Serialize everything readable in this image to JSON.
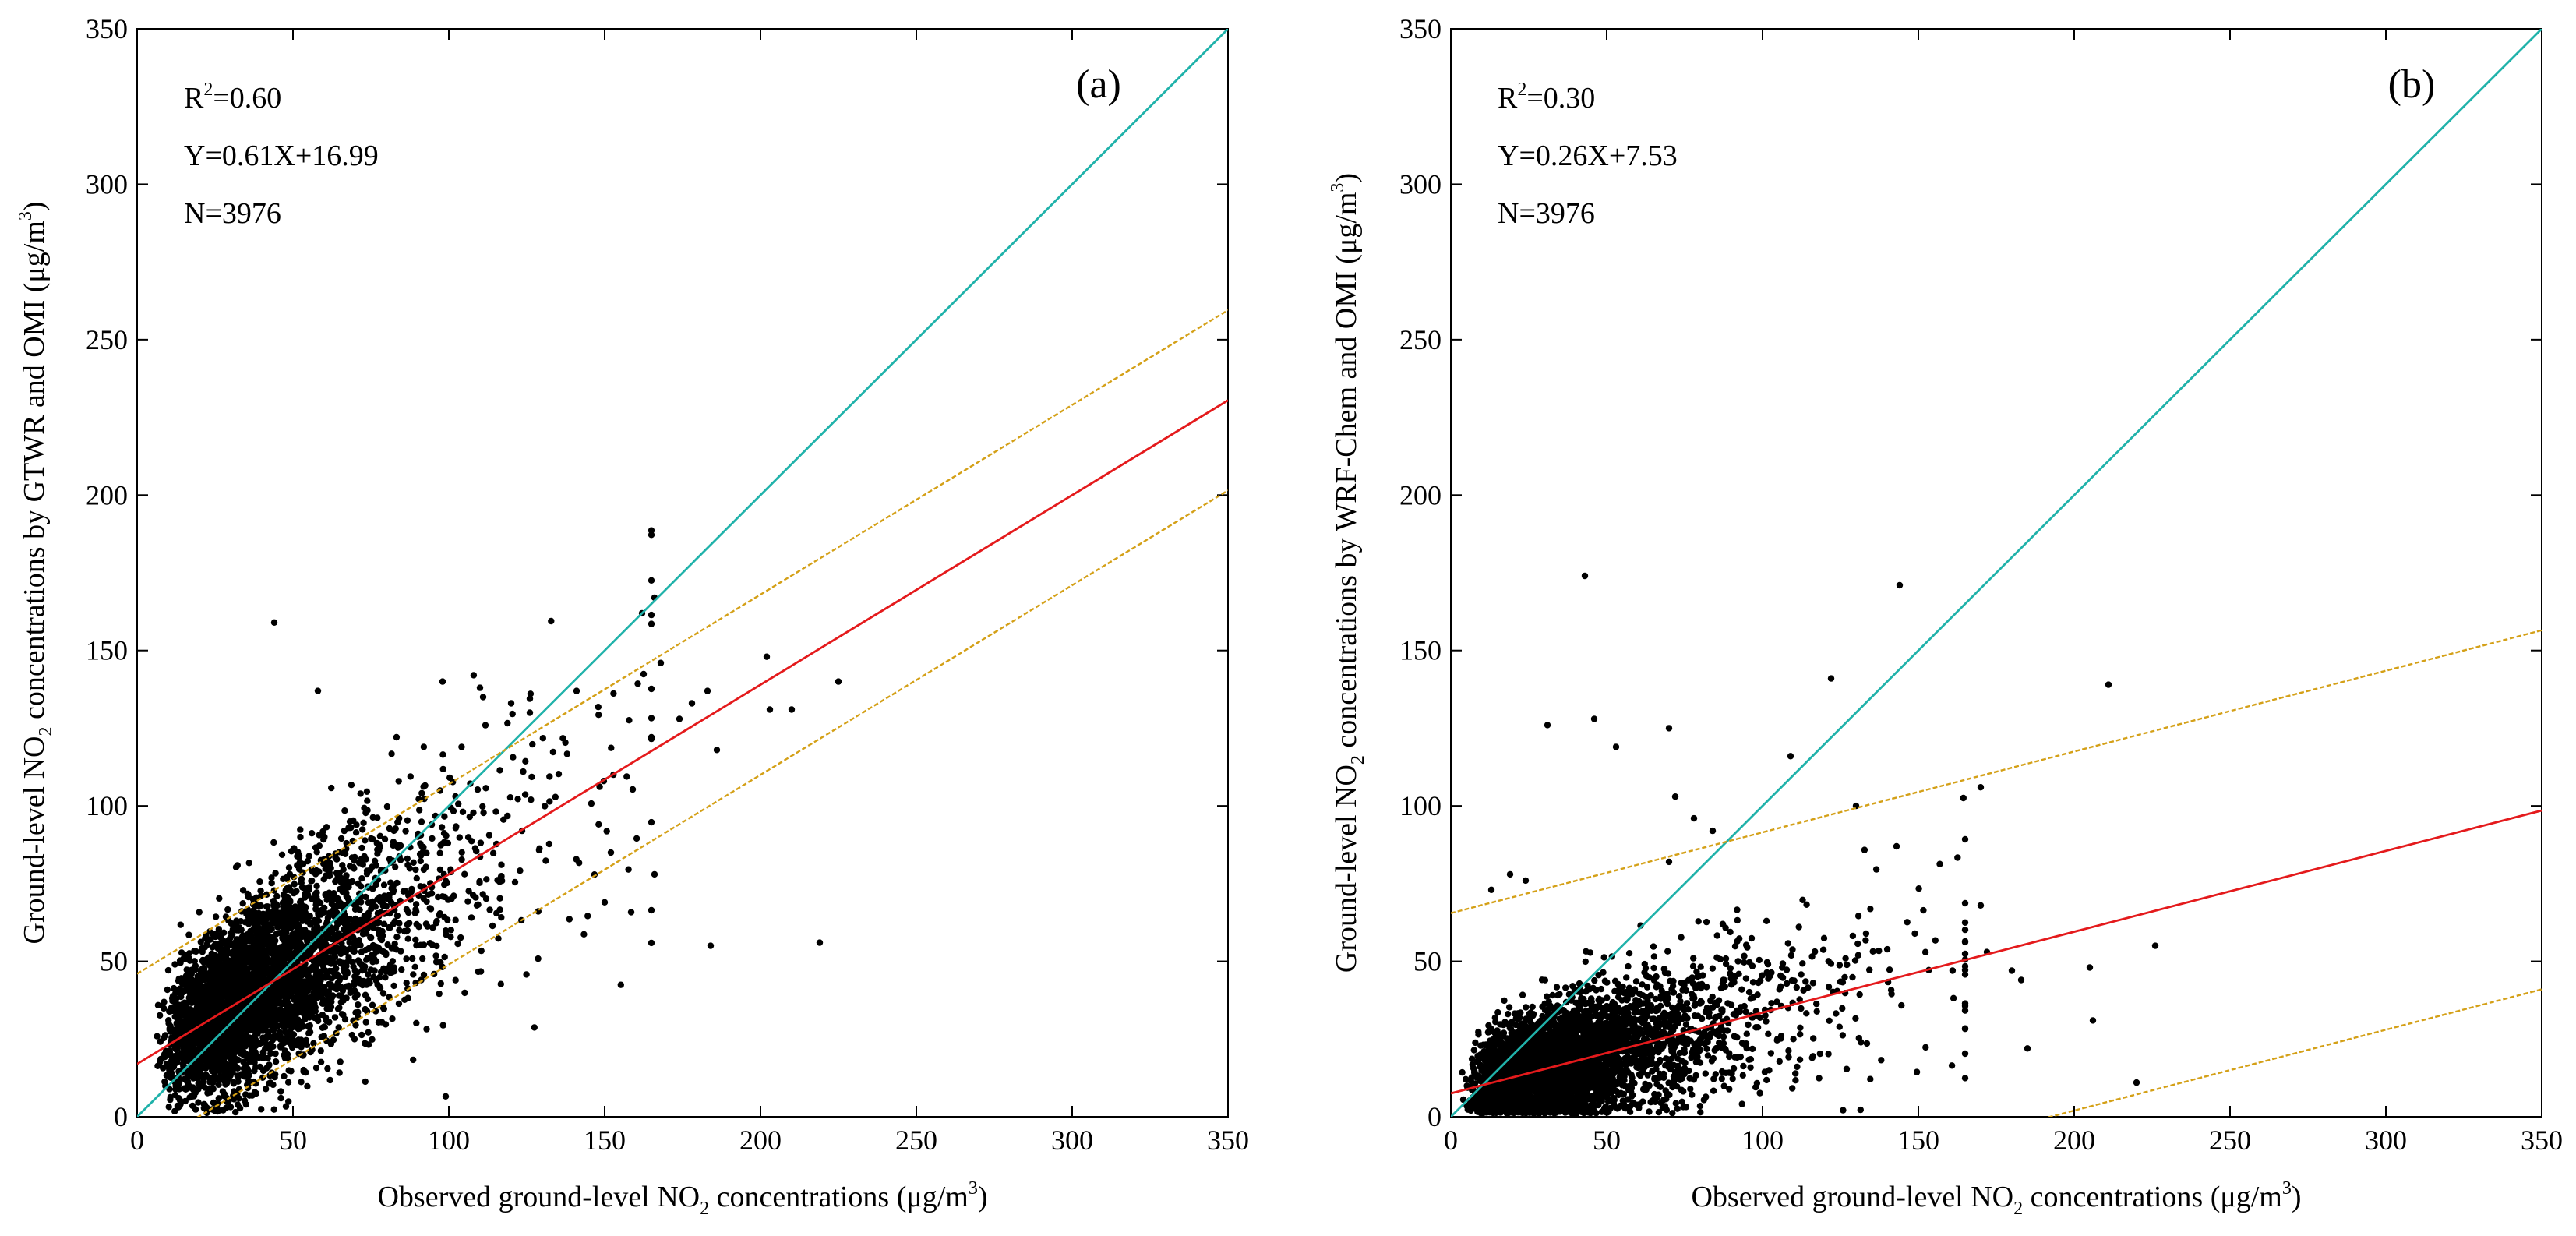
{
  "figure": {
    "panels": [
      {
        "panel_label": "(a)",
        "stats": {
          "r2_symbol": "R",
          "r2_exp": "2",
          "r2_value": "=0.60",
          "equation": "Y=0.61X+16.99",
          "n": "N=3976"
        },
        "xlabel": {
          "pre": "Observed ground-level NO",
          "sub": "2",
          "mid": " concentrations (μg/m",
          "sup": "3",
          "post": ")"
        },
        "ylabel": {
          "pre": "Ground-level NO",
          "sub": "2",
          "mid": " concentrations by GTWR and OMI (μg/m",
          "sup": "3",
          "post": ")"
        }
      },
      {
        "panel_label": "(b)",
        "stats": {
          "r2_symbol": "R",
          "r2_exp": "2",
          "r2_value": "=0.30",
          "equation": "Y=0.26X+7.53",
          "n": "N=3976"
        },
        "xlabel": {
          "pre": "Observed ground-level NO",
          "sub": "2",
          "mid": " concentrations (μg/m",
          "sup": "3",
          "post": ")"
        },
        "ylabel": {
          "pre": "Ground-level NO",
          "sub": "2",
          "mid": " concentrations by WRF-Chem and OMI (μg/m",
          "sup": "3",
          "post": ")"
        }
      }
    ]
  },
  "chart_data": [
    {
      "type": "scatter",
      "title": "",
      "xlim": [
        0,
        350
      ],
      "ylim": [
        0,
        350
      ],
      "xticks": [
        "0",
        "50",
        "100",
        "150",
        "200",
        "250",
        "300",
        "350"
      ],
      "yticks": [
        "0",
        "50",
        "100",
        "150",
        "200",
        "250",
        "300",
        "350"
      ],
      "n_points": 3976,
      "scatter_model": {
        "slope": 0.61,
        "intercept": 16.99,
        "x_median": 38,
        "x_spread": 0.55,
        "y_noise": 14
      },
      "outliers": [
        [
          44,
          159
        ],
        [
          58,
          137
        ],
        [
          98,
          140
        ],
        [
          110,
          138
        ],
        [
          111,
          135
        ],
        [
          120,
          133
        ],
        [
          126,
          130
        ],
        [
          141,
          137
        ],
        [
          162,
          162
        ],
        [
          166,
          167
        ],
        [
          168,
          146
        ],
        [
          174,
          128
        ],
        [
          178,
          133
        ],
        [
          183,
          137
        ],
        [
          186,
          118
        ],
        [
          202,
          148
        ],
        [
          203,
          131
        ],
        [
          210,
          131
        ],
        [
          219,
          56
        ],
        [
          225,
          140
        ],
        [
          184,
          55
        ],
        [
          152,
          85
        ],
        [
          150,
          69
        ],
        [
          166,
          78
        ]
      ],
      "lines": [
        {
          "kind": "one-to-one",
          "color": "#20b2aa",
          "slope": 1,
          "intercept": 0,
          "x_start": 0,
          "x_end": 350
        },
        {
          "kind": "regression",
          "color": "#e41a1c",
          "slope": 0.61,
          "intercept": 16.99
        },
        {
          "kind": "prediction-upper",
          "color": "#d4a017",
          "slope": 0.61,
          "intercept": 46
        },
        {
          "kind": "prediction-lower",
          "color": "#d4a017",
          "slope": 0.61,
          "intercept": -12
        }
      ]
    },
    {
      "type": "scatter",
      "title": "",
      "xlim": [
        0,
        350
      ],
      "ylim": [
        0,
        350
      ],
      "xticks": [
        "0",
        "50",
        "100",
        "150",
        "200",
        "250",
        "300",
        "350"
      ],
      "yticks": [
        "0",
        "50",
        "100",
        "150",
        "200",
        "250",
        "300",
        "350"
      ],
      "n_points": 3976,
      "scatter_model": {
        "slope": 0.26,
        "intercept": 7.53,
        "x_median": 35,
        "x_spread": 0.6,
        "y_noise": 10
      },
      "outliers": [
        [
          43,
          174
        ],
        [
          144,
          171
        ],
        [
          31,
          126
        ],
        [
          46,
          128
        ],
        [
          53,
          119
        ],
        [
          70,
          125
        ],
        [
          122,
          141
        ],
        [
          211,
          139
        ],
        [
          109,
          116
        ],
        [
          130,
          100
        ],
        [
          170,
          106
        ],
        [
          72,
          103
        ],
        [
          78,
          96
        ],
        [
          84,
          92
        ],
        [
          70,
          82
        ],
        [
          143,
          87
        ],
        [
          205,
          48
        ],
        [
          206,
          31
        ],
        [
          220,
          11
        ],
        [
          226,
          55
        ],
        [
          180,
          47
        ],
        [
          183,
          44
        ],
        [
          185,
          22
        ],
        [
          170,
          68
        ],
        [
          172,
          53
        ],
        [
          19,
          78
        ],
        [
          24,
          76
        ],
        [
          13,
          73
        ]
      ],
      "lines": [
        {
          "kind": "one-to-one",
          "color": "#20b2aa",
          "slope": 1,
          "intercept": 0,
          "x_start": 0,
          "x_end": 350
        },
        {
          "kind": "regression",
          "color": "#e41a1c",
          "slope": 0.26,
          "intercept": 7.53
        },
        {
          "kind": "prediction-upper",
          "color": "#d4a017",
          "slope": 0.26,
          "intercept": 65.5
        },
        {
          "kind": "prediction-lower",
          "color": "#d4a017",
          "slope": 0.26,
          "intercept": -50
        }
      ]
    }
  ]
}
